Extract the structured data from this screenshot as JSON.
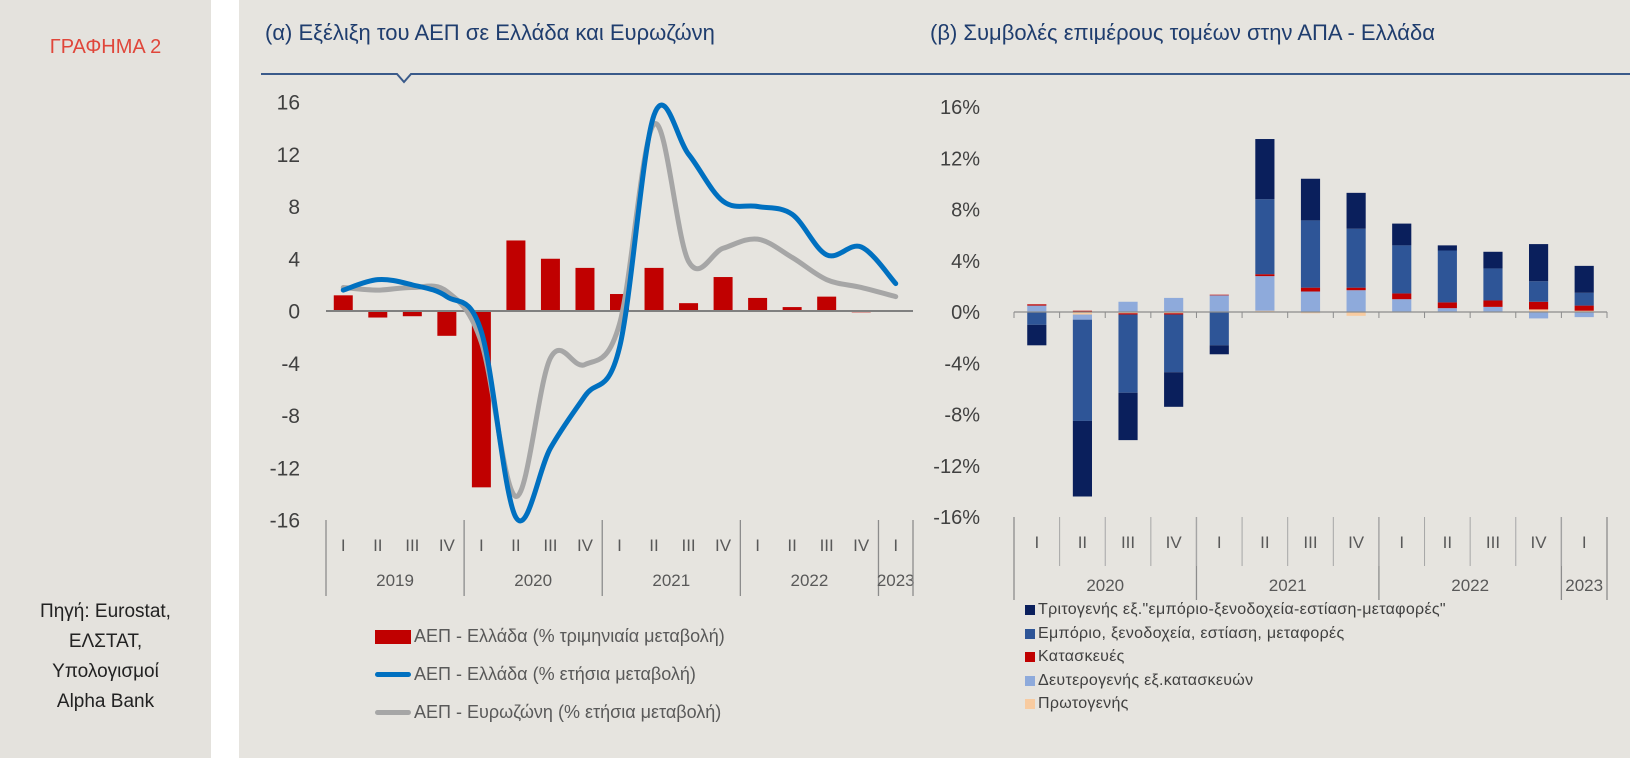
{
  "figure_label": "ΓΡΑΦΗΜΑ 2",
  "source_lines": [
    "Πηγή: Eurostat,",
    "ΕΛΣΤΑΤ,",
    "Υπολογισμοί",
    "Alpha Bank"
  ],
  "chart_data": [
    {
      "type": "bar+line",
      "title": "(α) Εξέλιξη του ΑΕΠ σε Ελλάδα και Ευρωζώνη",
      "ylim": [
        -16,
        16
      ],
      "yticks": [
        "16",
        "12",
        "8",
        "4",
        "0",
        "-4",
        "-8",
        "-12",
        "-16"
      ],
      "ytick_values": [
        16,
        12,
        8,
        4,
        0,
        -4,
        -8,
        -12,
        -16
      ],
      "quarters": [
        "I",
        "II",
        "III",
        "IV",
        "I",
        "II",
        "III",
        "IV",
        "I",
        "II",
        "III",
        "IV",
        "I",
        "II",
        "III",
        "IV",
        "I"
      ],
      "years": [
        {
          "label": "2019",
          "quarters": 4
        },
        {
          "label": "2020",
          "quarters": 4
        },
        {
          "label": "2021",
          "quarters": 4
        },
        {
          "label": "2022",
          "quarters": 4
        },
        {
          "label": "2023",
          "quarters": 1
        }
      ],
      "legend_position": "bottom",
      "grid": false,
      "series": [
        {
          "name": "ΑΕΠ - Ελλάδα (% τριμηνιαία μεταβολή)",
          "kind": "bar",
          "color": "#c00000",
          "values": [
            1.2,
            -0.5,
            -0.4,
            -1.9,
            -13.5,
            5.4,
            4.0,
            3.3,
            1.3,
            3.3,
            0.6,
            2.6,
            1.0,
            0.3,
            1.1,
            -0.1,
            0.0
          ]
        },
        {
          "name": "ΑΕΠ - Ελλάδα (% ετήσια μεταβολή)",
          "kind": "line",
          "color": "#0070c0",
          "values": [
            1.6,
            2.4,
            2.0,
            1.1,
            -1.6,
            -15.8,
            -10.5,
            -6.5,
            -2.8,
            15.0,
            12.0,
            8.4,
            8.0,
            7.4,
            4.3,
            4.9,
            2.1
          ]
        },
        {
          "name": "ΑΕΠ - Ευρωζώνη (% ετήσια μεταβολή)",
          "kind": "line",
          "color": "#a6a6a6",
          "values": [
            1.8,
            1.6,
            1.8,
            1.5,
            -2.4,
            -14.2,
            -3.6,
            -4.1,
            -1.0,
            14.3,
            3.8,
            4.8,
            5.5,
            4.1,
            2.4,
            1.8,
            1.1
          ]
        }
      ]
    },
    {
      "type": "stacked-bar",
      "title": "(β) Συμβολές επιμέρους τομέων στην ΑΠΑ - Ελλάδα",
      "ylim": [
        -16,
        16
      ],
      "yticks": [
        "16%",
        "12%",
        "8%",
        "4%",
        "0%",
        "-4%",
        "-8%",
        "-12%",
        "-16%"
      ],
      "ytick_values": [
        16,
        12,
        8,
        4,
        0,
        -4,
        -8,
        -12,
        -16
      ],
      "quarters": [
        "I",
        "II",
        "III",
        "IV",
        "I",
        "II",
        "III",
        "IV",
        "I",
        "II",
        "III",
        "IV",
        "I"
      ],
      "years": [
        {
          "label": "2020",
          "quarters": 4
        },
        {
          "label": "2021",
          "quarters": 4
        },
        {
          "label": "2022",
          "quarters": 4
        },
        {
          "label": "2023",
          "quarters": 1
        }
      ],
      "legend_position": "bottom",
      "grid": false,
      "series": [
        {
          "name": "Πρωτογενής",
          "color": "#f8cba0",
          "values": [
            0.0,
            -0.2,
            -0.1,
            -0.1,
            0.0,
            0.1,
            -0.1,
            -0.3,
            0.0,
            0.0,
            0.0,
            0.2,
            0.1
          ]
        },
        {
          "name": "Δευτερογενής εξ.κατασκευών",
          "color": "#8eaadb",
          "values": [
            0.5,
            -0.4,
            0.8,
            1.1,
            1.3,
            2.7,
            1.6,
            1.7,
            1.0,
            0.3,
            0.4,
            -0.5,
            -0.4
          ]
        },
        {
          "name": "Κατασκευές",
          "color": "#c00000",
          "values": [
            0.1,
            0.1,
            -0.1,
            -0.1,
            0.05,
            0.15,
            0.3,
            0.2,
            0.45,
            0.45,
            0.5,
            0.6,
            0.4
          ]
        },
        {
          "name": "Εμπόριο, ξενοδοχεία, εστίαση, μεταφορές",
          "color": "#2e5597",
          "values": [
            -1.0,
            -7.9,
            -6.1,
            -4.5,
            -2.6,
            5.85,
            5.25,
            4.6,
            3.75,
            4.05,
            2.5,
            1.6,
            1.0
          ]
        },
        {
          "name": "Τριτογενής εξ.\"εμπόριο-ξενοδοχεία-εστίαση-μεταφορές\"",
          "color": "#0a1f5c",
          "values": [
            -1.6,
            -5.9,
            -3.7,
            -2.7,
            -0.7,
            4.7,
            3.25,
            2.8,
            1.7,
            0.4,
            1.3,
            2.9,
            2.1
          ]
        }
      ],
      "legend_order": [
        4,
        3,
        2,
        1,
        0
      ]
    }
  ]
}
